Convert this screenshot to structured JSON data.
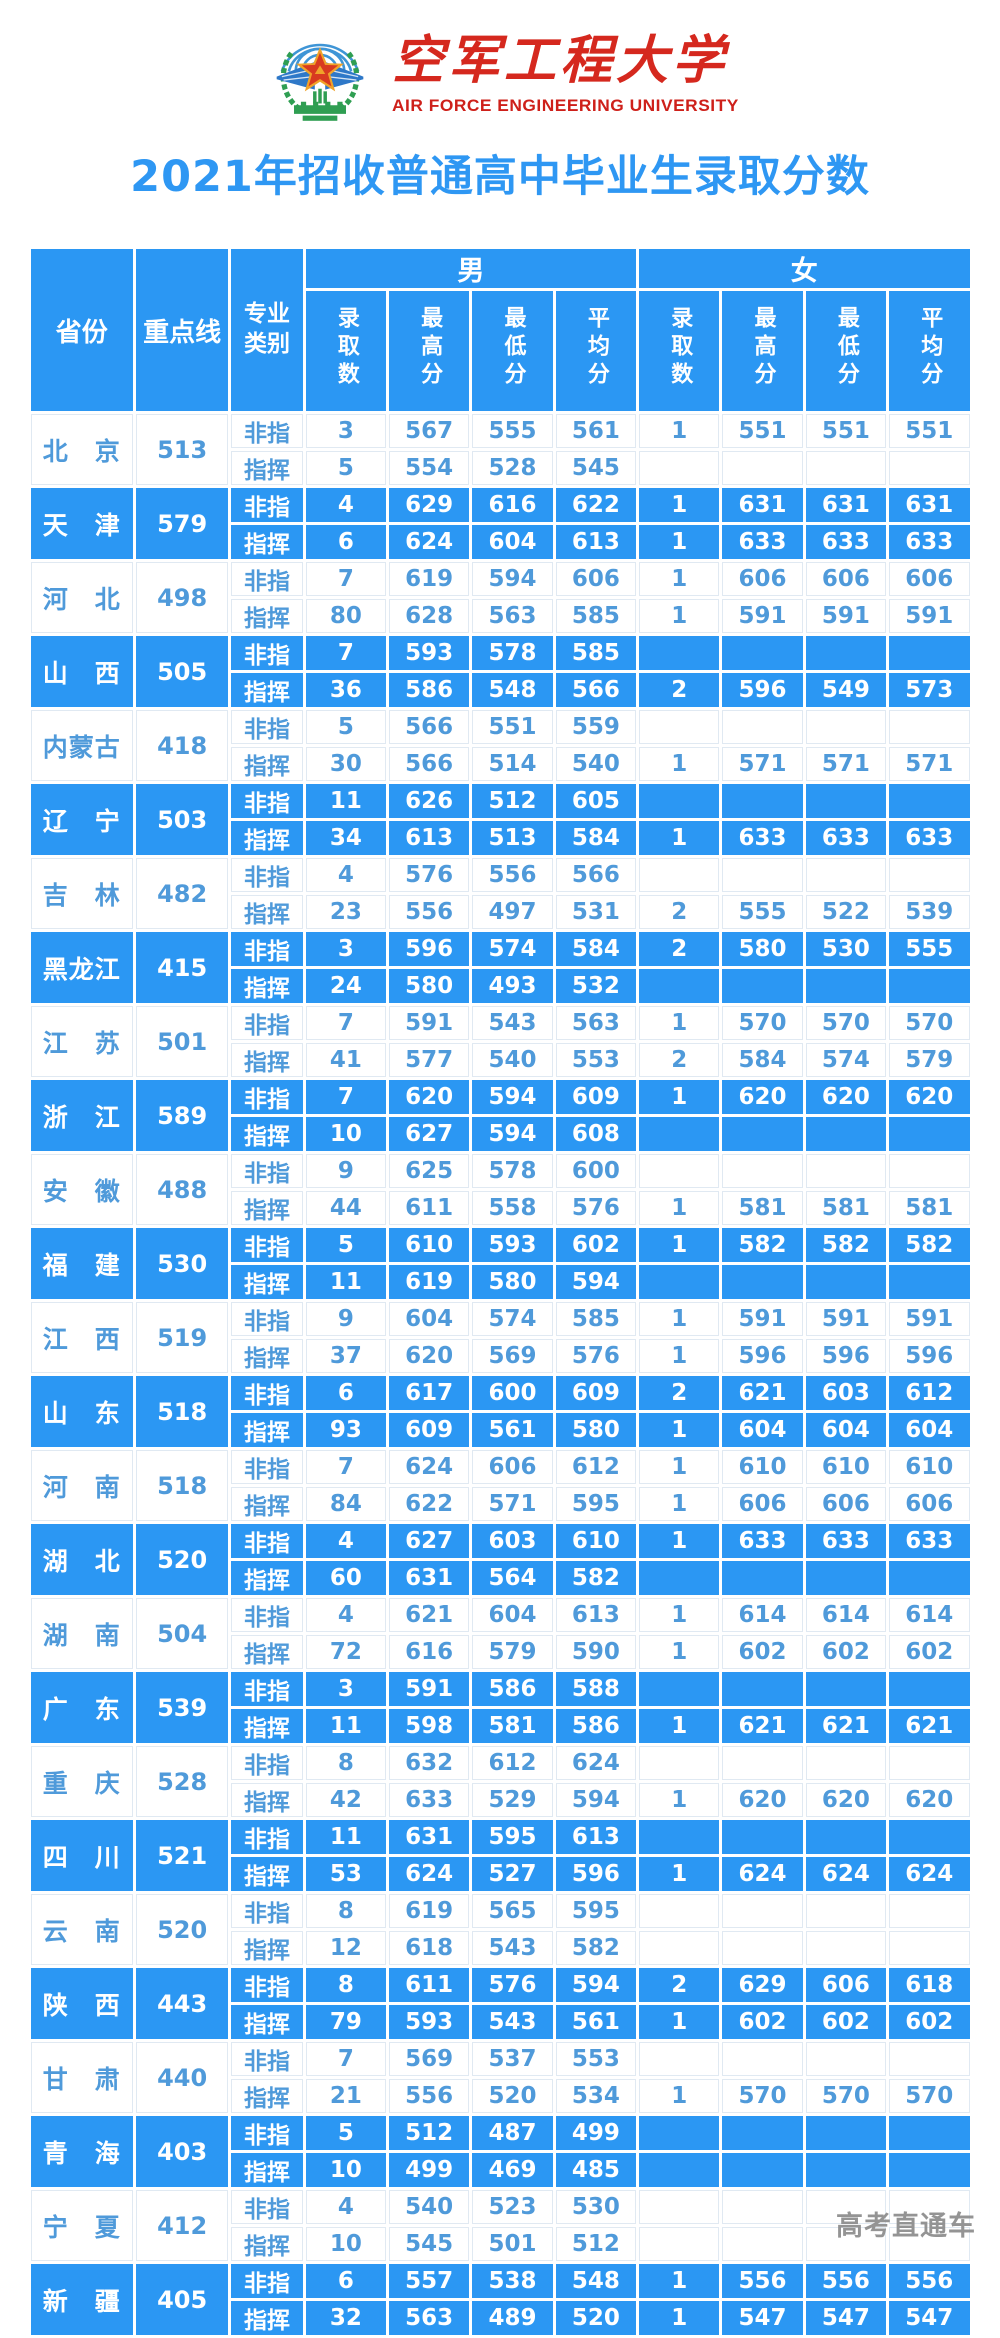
{
  "header": {
    "university_cn": "空军工程大学",
    "university_en": "AIR FORCE ENGINEERING UNIVERSITY",
    "title": "2021年招收普通高中毕业生录取分数"
  },
  "colors": {
    "table_blue": "#2b97f3",
    "light_row_text": "#4f9ada",
    "brand_red": "#d5281e",
    "title_blue": "#2e97f3"
  },
  "icons": {
    "logo": "air-force-emblem"
  },
  "table": {
    "headers": {
      "province": "省份",
      "keyline": "重点线",
      "category": "专业类别",
      "male": "男",
      "female": "女",
      "sub": [
        "录取数",
        "最高分",
        "最低分",
        "平均分"
      ]
    },
    "provinces": [
      {
        "name": "北　京",
        "keyline": "513",
        "rows": [
          [
            "非指",
            "3",
            "567",
            "555",
            "561",
            "1",
            "551",
            "551",
            "551"
          ],
          [
            "指挥",
            "5",
            "554",
            "528",
            "545",
            "",
            "",
            "",
            ""
          ]
        ]
      },
      {
        "name": "天　津",
        "keyline": "579",
        "rows": [
          [
            "非指",
            "4",
            "629",
            "616",
            "622",
            "1",
            "631",
            "631",
            "631"
          ],
          [
            "指挥",
            "6",
            "624",
            "604",
            "613",
            "1",
            "633",
            "633",
            "633"
          ]
        ]
      },
      {
        "name": "河　北",
        "keyline": "498",
        "rows": [
          [
            "非指",
            "7",
            "619",
            "594",
            "606",
            "1",
            "606",
            "606",
            "606"
          ],
          [
            "指挥",
            "80",
            "628",
            "563",
            "585",
            "1",
            "591",
            "591",
            "591"
          ]
        ]
      },
      {
        "name": "山　西",
        "keyline": "505",
        "rows": [
          [
            "非指",
            "7",
            "593",
            "578",
            "585",
            "",
            "",
            "",
            ""
          ],
          [
            "指挥",
            "36",
            "586",
            "548",
            "566",
            "2",
            "596",
            "549",
            "573"
          ]
        ]
      },
      {
        "name": "内蒙古",
        "keyline": "418",
        "rows": [
          [
            "非指",
            "5",
            "566",
            "551",
            "559",
            "",
            "",
            "",
            ""
          ],
          [
            "指挥",
            "30",
            "566",
            "514",
            "540",
            "1",
            "571",
            "571",
            "571"
          ]
        ]
      },
      {
        "name": "辽　宁",
        "keyline": "503",
        "rows": [
          [
            "非指",
            "11",
            "626",
            "512",
            "605",
            "",
            "",
            "",
            ""
          ],
          [
            "指挥",
            "34",
            "613",
            "513",
            "584",
            "1",
            "633",
            "633",
            "633"
          ]
        ]
      },
      {
        "name": "吉　林",
        "keyline": "482",
        "rows": [
          [
            "非指",
            "4",
            "576",
            "556",
            "566",
            "",
            "",
            "",
            ""
          ],
          [
            "指挥",
            "23",
            "556",
            "497",
            "531",
            "2",
            "555",
            "522",
            "539"
          ]
        ]
      },
      {
        "name": "黑龙江",
        "keyline": "415",
        "rows": [
          [
            "非指",
            "3",
            "596",
            "574",
            "584",
            "2",
            "580",
            "530",
            "555"
          ],
          [
            "指挥",
            "24",
            "580",
            "493",
            "532",
            "",
            "",
            "",
            ""
          ]
        ]
      },
      {
        "name": "江　苏",
        "keyline": "501",
        "rows": [
          [
            "非指",
            "7",
            "591",
            "543",
            "563",
            "1",
            "570",
            "570",
            "570"
          ],
          [
            "指挥",
            "41",
            "577",
            "540",
            "553",
            "2",
            "584",
            "574",
            "579"
          ]
        ]
      },
      {
        "name": "浙　江",
        "keyline": "589",
        "rows": [
          [
            "非指",
            "7",
            "620",
            "594",
            "609",
            "1",
            "620",
            "620",
            "620"
          ],
          [
            "指挥",
            "10",
            "627",
            "594",
            "608",
            "",
            "",
            "",
            ""
          ]
        ]
      },
      {
        "name": "安　徽",
        "keyline": "488",
        "rows": [
          [
            "非指",
            "9",
            "625",
            "578",
            "600",
            "",
            "",
            "",
            ""
          ],
          [
            "指挥",
            "44",
            "611",
            "558",
            "576",
            "1",
            "581",
            "581",
            "581"
          ]
        ]
      },
      {
        "name": "福　建",
        "keyline": "530",
        "rows": [
          [
            "非指",
            "5",
            "610",
            "593",
            "602",
            "1",
            "582",
            "582",
            "582"
          ],
          [
            "指挥",
            "11",
            "619",
            "580",
            "594",
            "",
            "",
            "",
            ""
          ]
        ]
      },
      {
        "name": "江　西",
        "keyline": "519",
        "rows": [
          [
            "非指",
            "9",
            "604",
            "574",
            "585",
            "1",
            "591",
            "591",
            "591"
          ],
          [
            "指挥",
            "37",
            "620",
            "569",
            "576",
            "1",
            "596",
            "596",
            "596"
          ]
        ]
      },
      {
        "name": "山　东",
        "keyline": "518",
        "rows": [
          [
            "非指",
            "6",
            "617",
            "600",
            "609",
            "2",
            "621",
            "603",
            "612"
          ],
          [
            "指挥",
            "93",
            "609",
            "561",
            "580",
            "1",
            "604",
            "604",
            "604"
          ]
        ]
      },
      {
        "name": "河　南",
        "keyline": "518",
        "rows": [
          [
            "非指",
            "7",
            "624",
            "606",
            "612",
            "1",
            "610",
            "610",
            "610"
          ],
          [
            "指挥",
            "84",
            "622",
            "571",
            "595",
            "1",
            "606",
            "606",
            "606"
          ]
        ]
      },
      {
        "name": "湖　北",
        "keyline": "520",
        "rows": [
          [
            "非指",
            "4",
            "627",
            "603",
            "610",
            "1",
            "633",
            "633",
            "633"
          ],
          [
            "指挥",
            "60",
            "631",
            "564",
            "582",
            "",
            "",
            "",
            ""
          ]
        ]
      },
      {
        "name": "湖　南",
        "keyline": "504",
        "rows": [
          [
            "非指",
            "4",
            "621",
            "604",
            "613",
            "1",
            "614",
            "614",
            "614"
          ],
          [
            "指挥",
            "72",
            "616",
            "579",
            "590",
            "1",
            "602",
            "602",
            "602"
          ]
        ]
      },
      {
        "name": "广　东",
        "keyline": "539",
        "rows": [
          [
            "非指",
            "3",
            "591",
            "586",
            "588",
            "",
            "",
            "",
            ""
          ],
          [
            "指挥",
            "11",
            "598",
            "581",
            "586",
            "1",
            "621",
            "621",
            "621"
          ]
        ]
      },
      {
        "name": "重　庆",
        "keyline": "528",
        "rows": [
          [
            "非指",
            "8",
            "632",
            "612",
            "624",
            "",
            "",
            "",
            ""
          ],
          [
            "指挥",
            "42",
            "633",
            "529",
            "594",
            "1",
            "620",
            "620",
            "620"
          ]
        ]
      },
      {
        "name": "四　川",
        "keyline": "521",
        "rows": [
          [
            "非指",
            "11",
            "631",
            "595",
            "613",
            "",
            "",
            "",
            ""
          ],
          [
            "指挥",
            "53",
            "624",
            "527",
            "596",
            "1",
            "624",
            "624",
            "624"
          ]
        ]
      },
      {
        "name": "云　南",
        "keyline": "520",
        "rows": [
          [
            "非指",
            "8",
            "619",
            "565",
            "595",
            "",
            "",
            "",
            ""
          ],
          [
            "指挥",
            "12",
            "618",
            "543",
            "582",
            "",
            "",
            "",
            ""
          ]
        ]
      },
      {
        "name": "陕　西",
        "keyline": "443",
        "rows": [
          [
            "非指",
            "8",
            "611",
            "576",
            "594",
            "2",
            "629",
            "606",
            "618"
          ],
          [
            "指挥",
            "79",
            "593",
            "543",
            "561",
            "1",
            "602",
            "602",
            "602"
          ]
        ]
      },
      {
        "name": "甘　肃",
        "keyline": "440",
        "rows": [
          [
            "非指",
            "7",
            "569",
            "537",
            "553",
            "",
            "",
            "",
            ""
          ],
          [
            "指挥",
            "21",
            "556",
            "520",
            "534",
            "1",
            "570",
            "570",
            "570"
          ]
        ]
      },
      {
        "name": "青　海",
        "keyline": "403",
        "rows": [
          [
            "非指",
            "5",
            "512",
            "487",
            "499",
            "",
            "",
            "",
            ""
          ],
          [
            "指挥",
            "10",
            "499",
            "469",
            "485",
            "",
            "",
            "",
            ""
          ]
        ]
      },
      {
        "name": "宁　夏",
        "keyline": "412",
        "rows": [
          [
            "非指",
            "4",
            "540",
            "523",
            "530",
            "",
            "",
            "",
            ""
          ],
          [
            "指挥",
            "10",
            "545",
            "501",
            "512",
            "",
            "",
            "",
            ""
          ]
        ]
      },
      {
        "name": "新　疆",
        "keyline": "405",
        "rows": [
          [
            "非指",
            "6",
            "557",
            "538",
            "548",
            "1",
            "556",
            "556",
            "556"
          ],
          [
            "指挥",
            "32",
            "563",
            "489",
            "520",
            "1",
            "547",
            "547",
            "547"
          ]
        ]
      }
    ]
  },
  "watermark": "高考直通车"
}
